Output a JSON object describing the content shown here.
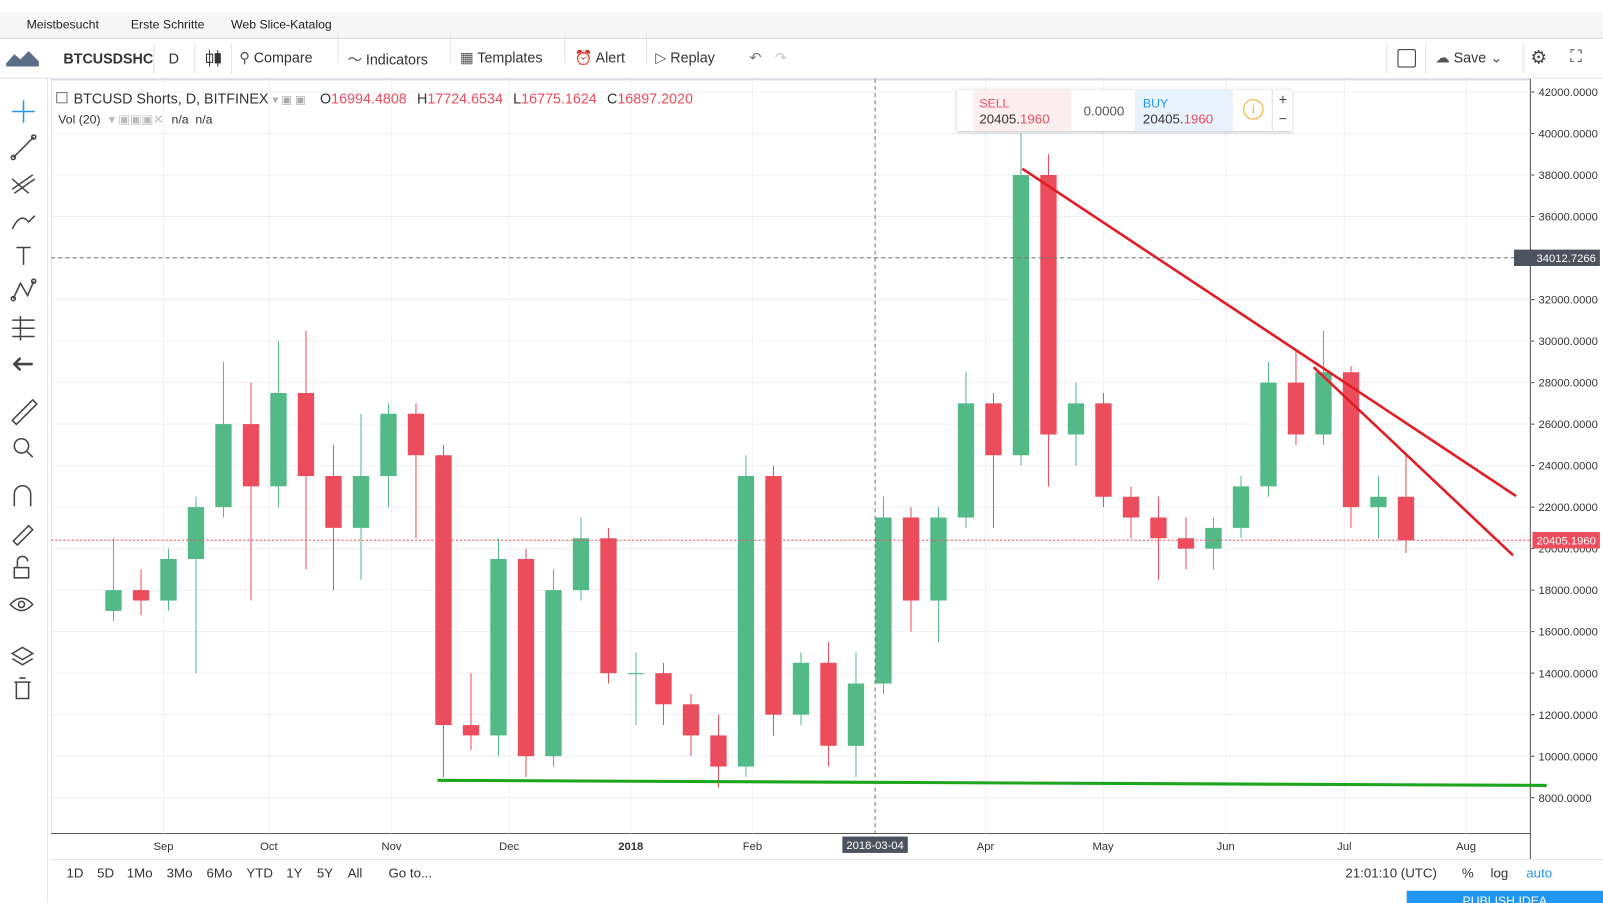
{
  "browser": {
    "bookmarks": [
      "Meistbesucht",
      "Erste Schritte",
      "Web Slice-Katalog"
    ]
  },
  "toolbar": {
    "symbol": "BTCUSDSHC",
    "interval": "D",
    "items": [
      "Compare",
      "Indicators",
      "Templates",
      "Alert",
      "Replay"
    ],
    "save": "Save"
  },
  "legend": {
    "title": "BTCUSD Shorts, D, BITFINEX",
    "ohlc": [
      {
        "key": "O",
        "value": "16994.4808"
      },
      {
        "key": "H",
        "value": "17724.6534"
      },
      {
        "key": "L",
        "value": "16775.1624"
      },
      {
        "key": "C",
        "value": "16897.2020"
      }
    ],
    "volume": "Vol (20)",
    "volume_values": [
      "n/a",
      "n/a"
    ]
  },
  "trade": {
    "sell": "SELL",
    "sell_main": "20405.",
    "sell_frac": "1960",
    "spread": "0.0000",
    "buy": "BUY",
    "buy_main": "20405.",
    "buy_frac": "1960"
  },
  "chart_data": {
    "type": "candlestick",
    "xticks": [
      "Sep",
      "Oct",
      "Nov",
      "Dec",
      "2018",
      "Feb",
      "Apr",
      "May",
      "Jun",
      "Jul",
      "Aug"
    ],
    "crosshair": {
      "x_label": "2018-03-04",
      "y_value": 34012.7266
    },
    "last_price": {
      "value": 20405.196,
      "label": "20405.1960"
    },
    "ylim": [
      6275,
      42590
    ],
    "yticks": [
      {
        "value": 8000,
        "label": "8000.0000"
      },
      {
        "value": 10000,
        "label": "10000.0000"
      },
      {
        "value": 12000,
        "label": "12000.0000"
      },
      {
        "value": 14000,
        "label": "14000.0000"
      },
      {
        "value": 16000,
        "label": "16000.0000"
      },
      {
        "value": 18000,
        "label": "18000.0000"
      },
      {
        "value": 20000,
        "label": "20000.0000"
      },
      {
        "value": 22000,
        "label": "22000.0000"
      },
      {
        "value": 24000,
        "label": "24000.0000"
      },
      {
        "value": 26000,
        "label": "26000.0000"
      },
      {
        "value": 28000,
        "label": "28000.0000"
      },
      {
        "value": 30000,
        "label": "30000.0000"
      },
      {
        "value": 32000,
        "label": "32000.0000"
      },
      {
        "value": 34000,
        "label": "34000.0000"
      },
      {
        "value": 36000,
        "label": "36000.0000"
      },
      {
        "value": 38000,
        "label": "38000.0000"
      },
      {
        "value": 40000,
        "label": "40000.0000"
      },
      {
        "value": 42000,
        "label": "42000.0000"
      }
    ],
    "up_color": "#53b987",
    "down_color": "#eb4d5c",
    "open": [
      17000,
      18000,
      17500,
      19500,
      22000,
      26000,
      23000,
      27500,
      23500,
      21000,
      23500,
      26500,
      24500,
      11500,
      11000,
      19500,
      10000,
      18000,
      20500,
      14000,
      14000,
      12500,
      11000,
      9500,
      23500,
      12000,
      14500,
      10500,
      13500,
      21500,
      17500,
      21500,
      27000,
      24500,
      38000,
      25500,
      27000,
      22500,
      21500,
      20500,
      20000,
      21000,
      23000,
      28000,
      25500,
      28500,
      22000,
      22500
    ],
    "high": [
      20500,
      19000,
      20000,
      22500,
      29000,
      28000,
      30000,
      30500,
      25000,
      26500,
      27000,
      27000,
      25000,
      14000,
      20500,
      20000,
      19000,
      21500,
      21000,
      15000,
      14500,
      13000,
      12000,
      24500,
      24000,
      15000,
      15500,
      15000,
      22500,
      22000,
      22000,
      28500,
      27500,
      40000,
      39000,
      28000,
      27500,
      23000,
      22500,
      21500,
      21500,
      23500,
      29000,
      29500,
      30500,
      28800,
      23500,
      24500
    ],
    "low": [
      16500,
      16800,
      17000,
      14000,
      21500,
      17500,
      22000,
      19000,
      18000,
      18500,
      22000,
      20500,
      9000,
      10300,
      10000,
      9000,
      9500,
      17500,
      13500,
      11500,
      11500,
      10000,
      8500,
      9000,
      11000,
      11500,
      9500,
      9000,
      13000,
      16000,
      15500,
      21000,
      21000,
      24000,
      23000,
      24000,
      22000,
      20500,
      18500,
      19000,
      19000,
      20500,
      22500,
      25000,
      25000,
      21000,
      20500,
      19800
    ],
    "close": [
      18000,
      17500,
      19500,
      22000,
      26000,
      23000,
      27500,
      23500,
      21000,
      23500,
      26500,
      24500,
      11500,
      11000,
      19500,
      10000,
      18000,
      20500,
      14000,
      14000,
      12500,
      11000,
      9500,
      23500,
      12000,
      14500,
      10500,
      13500,
      21500,
      17500,
      21500,
      27000,
      24500,
      38000,
      25500,
      27000,
      22500,
      21500,
      20500,
      20000,
      21000,
      23000,
      28000,
      25500,
      28500,
      22000,
      22500,
      20405.196
    ]
  },
  "bottom": {
    "ranges": [
      "1D",
      "5D",
      "1Mo",
      "3Mo",
      "6Mo",
      "YTD",
      "1Y",
      "5Y",
      "All"
    ],
    "goto": "Go to...",
    "clock": "21:01:10 (UTC)",
    "percent": "%",
    "log": "log",
    "auto": "auto",
    "publish": "PUBLISH IDEA"
  }
}
